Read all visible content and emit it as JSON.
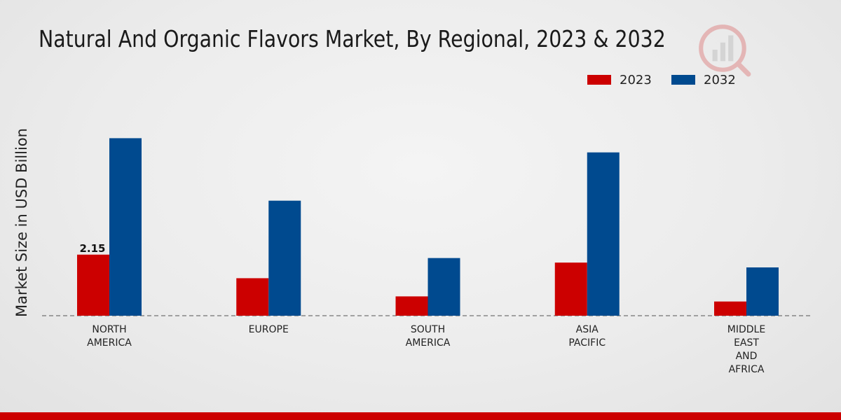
{
  "chart_data": {
    "type": "bar",
    "title": "Natural And Organic Flavors Market, By Regional, 2023 & 2032",
    "xlabel": "",
    "ylabel": "Market Size in USD Billion",
    "categories": [
      [
        "NORTH",
        "AMERICA"
      ],
      [
        "EUROPE"
      ],
      [
        "SOUTH",
        "AMERICA"
      ],
      [
        "ASIA",
        "PACIFIC"
      ],
      [
        "MIDDLE",
        "EAST",
        "AND",
        "AFRICA"
      ]
    ],
    "series": [
      {
        "name": "2023",
        "color": "#cc0000",
        "values": [
          2.15,
          1.32,
          0.68,
          1.87,
          0.5
        ]
      },
      {
        "name": "2032",
        "color": "#004a8f",
        "values": [
          6.25,
          4.05,
          2.03,
          5.75,
          1.7
        ]
      }
    ],
    "data_labels": [
      {
        "series": 0,
        "index": 0,
        "text": "2.15"
      }
    ],
    "ylim": [
      0,
      10.5
    ],
    "legend_position": "top-right",
    "grid": false
  }
}
